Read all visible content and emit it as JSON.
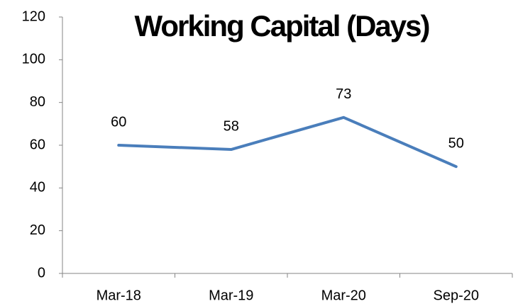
{
  "chart_data": {
    "type": "line",
    "title": "Working Capital (Days)",
    "categories": [
      "Mar-18",
      "Mar-19",
      "Mar-20",
      "Sep-20"
    ],
    "series": [
      {
        "name": "Working Capital",
        "color": "#4a7ebb",
        "values": [
          60,
          58,
          73,
          50
        ]
      }
    ],
    "ylim": [
      0,
      120
    ],
    "yticks": [
      0,
      20,
      40,
      60,
      80,
      100,
      120
    ],
    "grid": false
  }
}
